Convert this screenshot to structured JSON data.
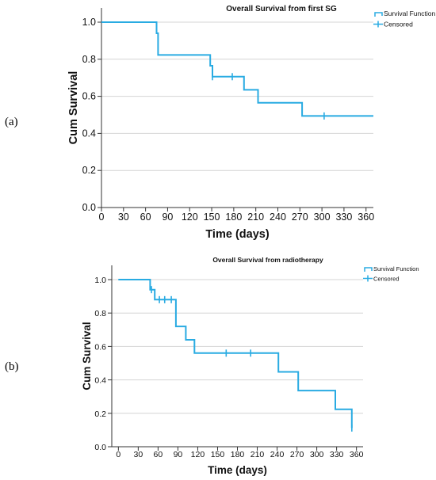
{
  "panel_labels": [
    "(a)",
    "(b)"
  ],
  "colors": {
    "line": "#29abe2",
    "grid": "#d4d4d4",
    "axis": "#333333"
  },
  "chart_data": [
    {
      "type": "line",
      "subtype": "kaplan-meier-step",
      "title": "Overall Survival from first SG",
      "xlabel": "Time (days)",
      "ylabel": "Cum Survival",
      "xlim": [
        0,
        370
      ],
      "ylim": [
        0,
        1.0
      ],
      "xticks": [
        "0",
        "30",
        "60",
        "90",
        "120",
        "150",
        "180",
        "210",
        "240",
        "270",
        "300",
        "330",
        "360"
      ],
      "yticks": [
        "0.0",
        "0.2",
        "0.4",
        "0.6",
        "0.8",
        "1.0"
      ],
      "grid": "horizontal",
      "legend": {
        "position": "top-right",
        "entries": [
          "Survival Function",
          "Censored"
        ]
      },
      "series": [
        {
          "name": "Survival Function",
          "steps": [
            [
              0,
              1.0
            ],
            [
              75,
              1.0
            ],
            [
              75,
              0.94
            ],
            [
              77,
              0.94
            ],
            [
              77,
              0.823
            ],
            [
              148,
              0.823
            ],
            [
              148,
              0.765
            ],
            [
              151,
              0.765
            ],
            [
              151,
              0.706
            ],
            [
              194,
              0.706
            ],
            [
              194,
              0.635
            ],
            [
              213,
              0.635
            ],
            [
              213,
              0.565
            ],
            [
              273,
              0.565
            ],
            [
              273,
              0.494
            ],
            [
              370,
              0.494
            ]
          ]
        },
        {
          "name": "Censored",
          "points": [
            [
              151,
              0.706
            ],
            [
              178,
              0.706
            ],
            [
              303,
              0.494
            ]
          ]
        }
      ]
    },
    {
      "type": "line",
      "subtype": "kaplan-meier-step",
      "title": "Overall Survival from radiotherapy",
      "xlabel": "Time (days)",
      "ylabel": "Cum Survival",
      "xlim": [
        -10,
        370
      ],
      "ylim": [
        0,
        1.0
      ],
      "xticks": [
        "0",
        "30",
        "60",
        "90",
        "120",
        "150",
        "180",
        "210",
        "240",
        "270",
        "300",
        "330",
        "360"
      ],
      "yticks": [
        "0.0",
        "0.2",
        "0.4",
        "0.6",
        "0.8",
        "1.0"
      ],
      "grid": "horizontal",
      "legend": {
        "position": "top-right",
        "entries": [
          "Survival Function",
          "Censored"
        ]
      },
      "series": [
        {
          "name": "Survival Function",
          "steps": [
            [
              0,
              1.0
            ],
            [
              48,
              1.0
            ],
            [
              48,
              0.94
            ],
            [
              55,
              0.94
            ],
            [
              55,
              0.88
            ],
            [
              87,
              0.88
            ],
            [
              87,
              0.72
            ],
            [
              102,
              0.72
            ],
            [
              102,
              0.64
            ],
            [
              115,
              0.64
            ],
            [
              115,
              0.56
            ],
            [
              242,
              0.56
            ],
            [
              242,
              0.448
            ],
            [
              272,
              0.448
            ],
            [
              272,
              0.336
            ],
            [
              328,
              0.336
            ],
            [
              328,
              0.224
            ],
            [
              353,
              0.224
            ],
            [
              353,
              0.112
            ]
          ]
        },
        {
          "name": "Censored",
          "points": [
            [
              50,
              0.94
            ],
            [
              62,
              0.88
            ],
            [
              70,
              0.88
            ],
            [
              80,
              0.88
            ],
            [
              163,
              0.56
            ],
            [
              200,
              0.56
            ],
            [
              353,
              0.112
            ]
          ]
        }
      ]
    }
  ]
}
